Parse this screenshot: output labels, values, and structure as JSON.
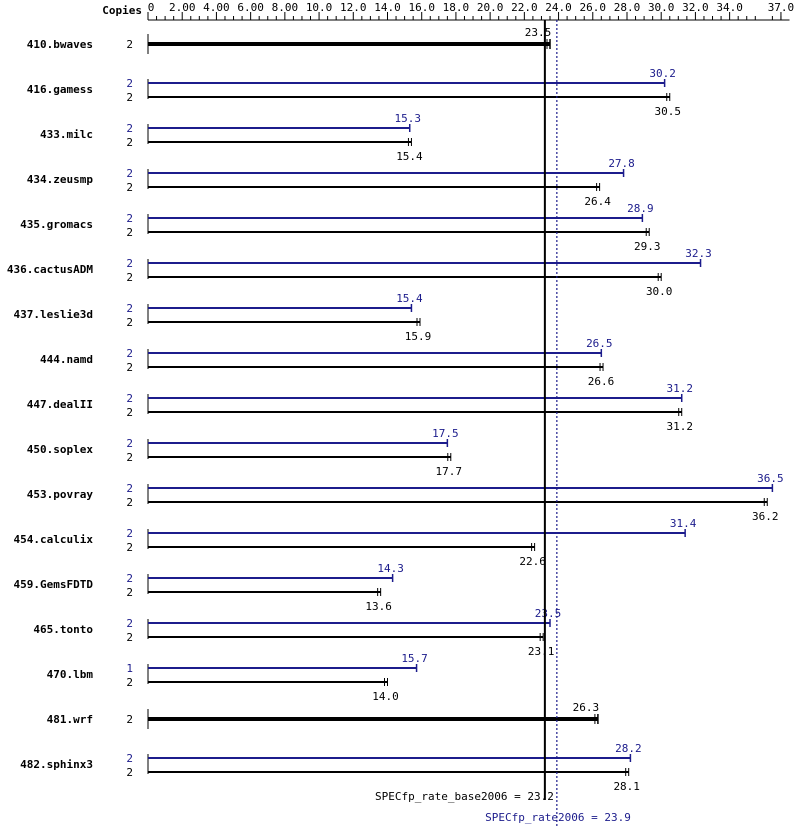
{
  "chart_data": {
    "type": "bar",
    "orientation": "horizontal",
    "copies_label": "Copies",
    "x_ticks": [
      "0",
      "2.00",
      "4.00",
      "6.00",
      "8.00",
      "10.0",
      "12.0",
      "14.0",
      "16.0",
      "18.0",
      "20.0",
      "22.0",
      "24.0",
      "26.0",
      "28.0",
      "30.0",
      "32.0",
      "34.0",
      "37.0"
    ],
    "xlim": [
      0,
      37.5
    ],
    "colors": {
      "peak": "#1c1c8c",
      "base": "#000000"
    },
    "reference_lines": [
      {
        "label": "SPECfp_rate_base2006 = 23.2",
        "value": 23.2,
        "style": "solid",
        "color": "#000000"
      },
      {
        "label": "SPECfp_rate2006 = 23.9",
        "value": 23.9,
        "style": "dotted",
        "color": "#1c1c8c"
      }
    ],
    "benchmarks": [
      {
        "name": "410.bwaves",
        "combined": true,
        "copies": "2",
        "value": 23.5,
        "label": "23.5"
      },
      {
        "name": "416.gamess",
        "peak": {
          "copies": "2",
          "value": 30.2,
          "label": "30.2"
        },
        "base": {
          "copies": "2",
          "value": 30.5,
          "label": "30.5"
        }
      },
      {
        "name": "433.milc",
        "peak": {
          "copies": "2",
          "value": 15.3,
          "label": "15.3"
        },
        "base": {
          "copies": "2",
          "value": 15.4,
          "label": "15.4"
        }
      },
      {
        "name": "434.zeusmp",
        "peak": {
          "copies": "2",
          "value": 27.8,
          "label": "27.8"
        },
        "base": {
          "copies": "2",
          "value": 26.4,
          "label": "26.4"
        }
      },
      {
        "name": "435.gromacs",
        "peak": {
          "copies": "2",
          "value": 28.9,
          "label": "28.9"
        },
        "base": {
          "copies": "2",
          "value": 29.3,
          "label": "29.3"
        }
      },
      {
        "name": "436.cactusADM",
        "peak": {
          "copies": "2",
          "value": 32.3,
          "label": "32.3"
        },
        "base": {
          "copies": "2",
          "value": 30.0,
          "label": "30.0"
        }
      },
      {
        "name": "437.leslie3d",
        "peak": {
          "copies": "2",
          "value": 15.4,
          "label": "15.4"
        },
        "base": {
          "copies": "2",
          "value": 15.9,
          "label": "15.9"
        }
      },
      {
        "name": "444.namd",
        "peak": {
          "copies": "2",
          "value": 26.5,
          "label": "26.5"
        },
        "base": {
          "copies": "2",
          "value": 26.6,
          "label": "26.6"
        }
      },
      {
        "name": "447.dealII",
        "peak": {
          "copies": "2",
          "value": 31.2,
          "label": "31.2"
        },
        "base": {
          "copies": "2",
          "value": 31.2,
          "label": "31.2"
        }
      },
      {
        "name": "450.soplex",
        "peak": {
          "copies": "2",
          "value": 17.5,
          "label": "17.5"
        },
        "base": {
          "copies": "2",
          "value": 17.7,
          "label": "17.7"
        }
      },
      {
        "name": "453.povray",
        "peak": {
          "copies": "2",
          "value": 36.5,
          "label": "36.5"
        },
        "base": {
          "copies": "2",
          "value": 36.2,
          "label": "36.2"
        }
      },
      {
        "name": "454.calculix",
        "peak": {
          "copies": "2",
          "value": 31.4,
          "label": "31.4"
        },
        "base": {
          "copies": "2",
          "value": 22.6,
          "label": "22.6"
        }
      },
      {
        "name": "459.GemsFDTD",
        "peak": {
          "copies": "2",
          "value": 14.3,
          "label": "14.3"
        },
        "base": {
          "copies": "2",
          "value": 13.6,
          "label": "13.6"
        }
      },
      {
        "name": "465.tonto",
        "peak": {
          "copies": "2",
          "value": 23.5,
          "label": "23.5"
        },
        "base": {
          "copies": "2",
          "value": 23.1,
          "label": "23.1"
        }
      },
      {
        "name": "470.lbm",
        "peak": {
          "copies": "1",
          "value": 15.7,
          "label": "15.7"
        },
        "base": {
          "copies": "2",
          "value": 14.0,
          "label": "14.0"
        }
      },
      {
        "name": "481.wrf",
        "combined": true,
        "copies": "2",
        "value": 26.3,
        "label": "26.3"
      },
      {
        "name": "482.sphinx3",
        "peak": {
          "copies": "2",
          "value": 28.2,
          "label": "28.2"
        },
        "base": {
          "copies": "2",
          "value": 28.1,
          "label": "28.1"
        }
      }
    ]
  }
}
